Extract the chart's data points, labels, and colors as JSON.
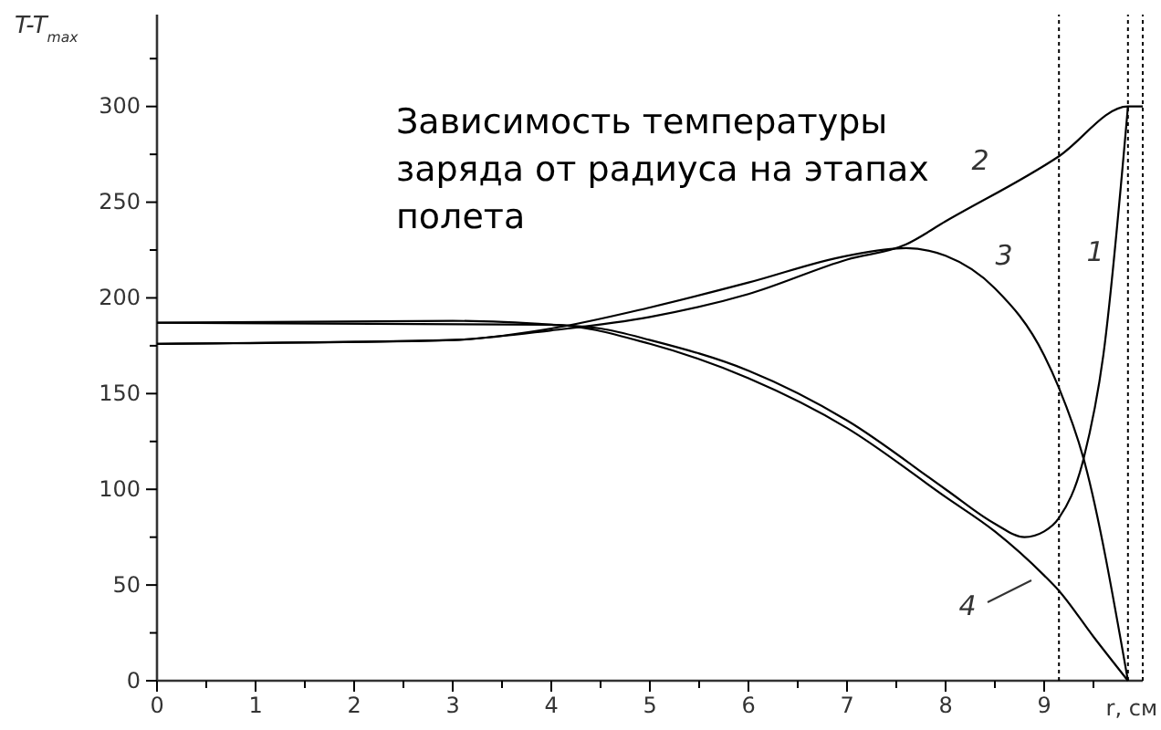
{
  "chart_data": {
    "type": "line",
    "title": "Зависимость температуры заряда от радиуса на этапах полета",
    "xlabel": "r, см",
    "ylabel": "T-T$_{max}$",
    "xlim": [
      0,
      10
    ],
    "ylim": [
      0,
      348
    ],
    "xticks": [
      0,
      {
        "value": 0.5,
        "label": null
      },
      1,
      {
        "value": 1.5,
        "label": null
      },
      2,
      {
        "value": 2.5,
        "label": null
      },
      3,
      {
        "value": 3.5,
        "label": null
      },
      4,
      {
        "value": 4.5,
        "label": null
      },
      5,
      {
        "value": 5.5,
        "label": null
      },
      6,
      {
        "value": 6.5,
        "label": null
      },
      7,
      {
        "value": 7.5,
        "label": null
      },
      8,
      {
        "value": 8.5,
        "label": null
      },
      9,
      {
        "value": 9.5,
        "label": null
      }
    ],
    "yticks": [
      0,
      {
        "value": 25,
        "label": null
      },
      50,
      {
        "value": 75,
        "label": null
      },
      100,
      {
        "value": 125,
        "label": null
      },
      150,
      {
        "value": 175,
        "label": null
      },
      200,
      {
        "value": 225,
        "label": null
      },
      250,
      {
        "value": 275,
        "label": null
      },
      300,
      {
        "value": 325,
        "label": null
      }
    ],
    "grid": false,
    "marker": "none",
    "line_style": "solid",
    "series": [
      {
        "name": "1",
        "color": "#000000",
        "x": [
          0,
          3,
          4,
          4.5,
          5,
          6,
          7,
          8,
          8.5,
          8.8,
          9,
          9.15,
          9.4,
          9.6,
          9.85
        ],
        "values": [
          187,
          188,
          186,
          184,
          178,
          162,
          136,
          100,
          82,
          75,
          78,
          85,
          116,
          170,
          300
        ]
      },
      {
        "name": "2",
        "color": "#000000",
        "x": [
          0,
          2,
          3,
          4,
          5,
          6,
          7,
          7.6,
          8,
          9.15,
          9.85,
          10
        ],
        "values": [
          176,
          177,
          178,
          183,
          190,
          202,
          220,
          228,
          240,
          274,
          300,
          300
        ]
      },
      {
        "name": "3",
        "color": "#000000",
        "x": [
          0,
          3,
          4,
          5,
          6,
          7,
          7.6,
          8,
          8.5,
          9,
          9.15,
          9.4,
          9.85
        ],
        "values": [
          176,
          178,
          184,
          195,
          208,
          222,
          226,
          222,
          205,
          170,
          153,
          116,
          0
        ]
      },
      {
        "name": "4",
        "color": "#000000",
        "x": [
          0,
          4,
          5,
          6,
          7,
          8,
          8.5,
          9,
          9.15,
          9.5,
          9.85
        ],
        "values": [
          187,
          186,
          176,
          158,
          132,
          96,
          78,
          55,
          47,
          23,
          0
        ]
      }
    ],
    "ref_lines": [
      {
        "axis": "x",
        "value": 9.15,
        "color": "#000000",
        "line_style": "dotted"
      },
      {
        "axis": "x",
        "value": 9.85,
        "color": "#000000",
        "line_style": "dotted"
      },
      {
        "axis": "x",
        "value": 10,
        "color": "#000000",
        "line_style": "dotted"
      }
    ]
  }
}
